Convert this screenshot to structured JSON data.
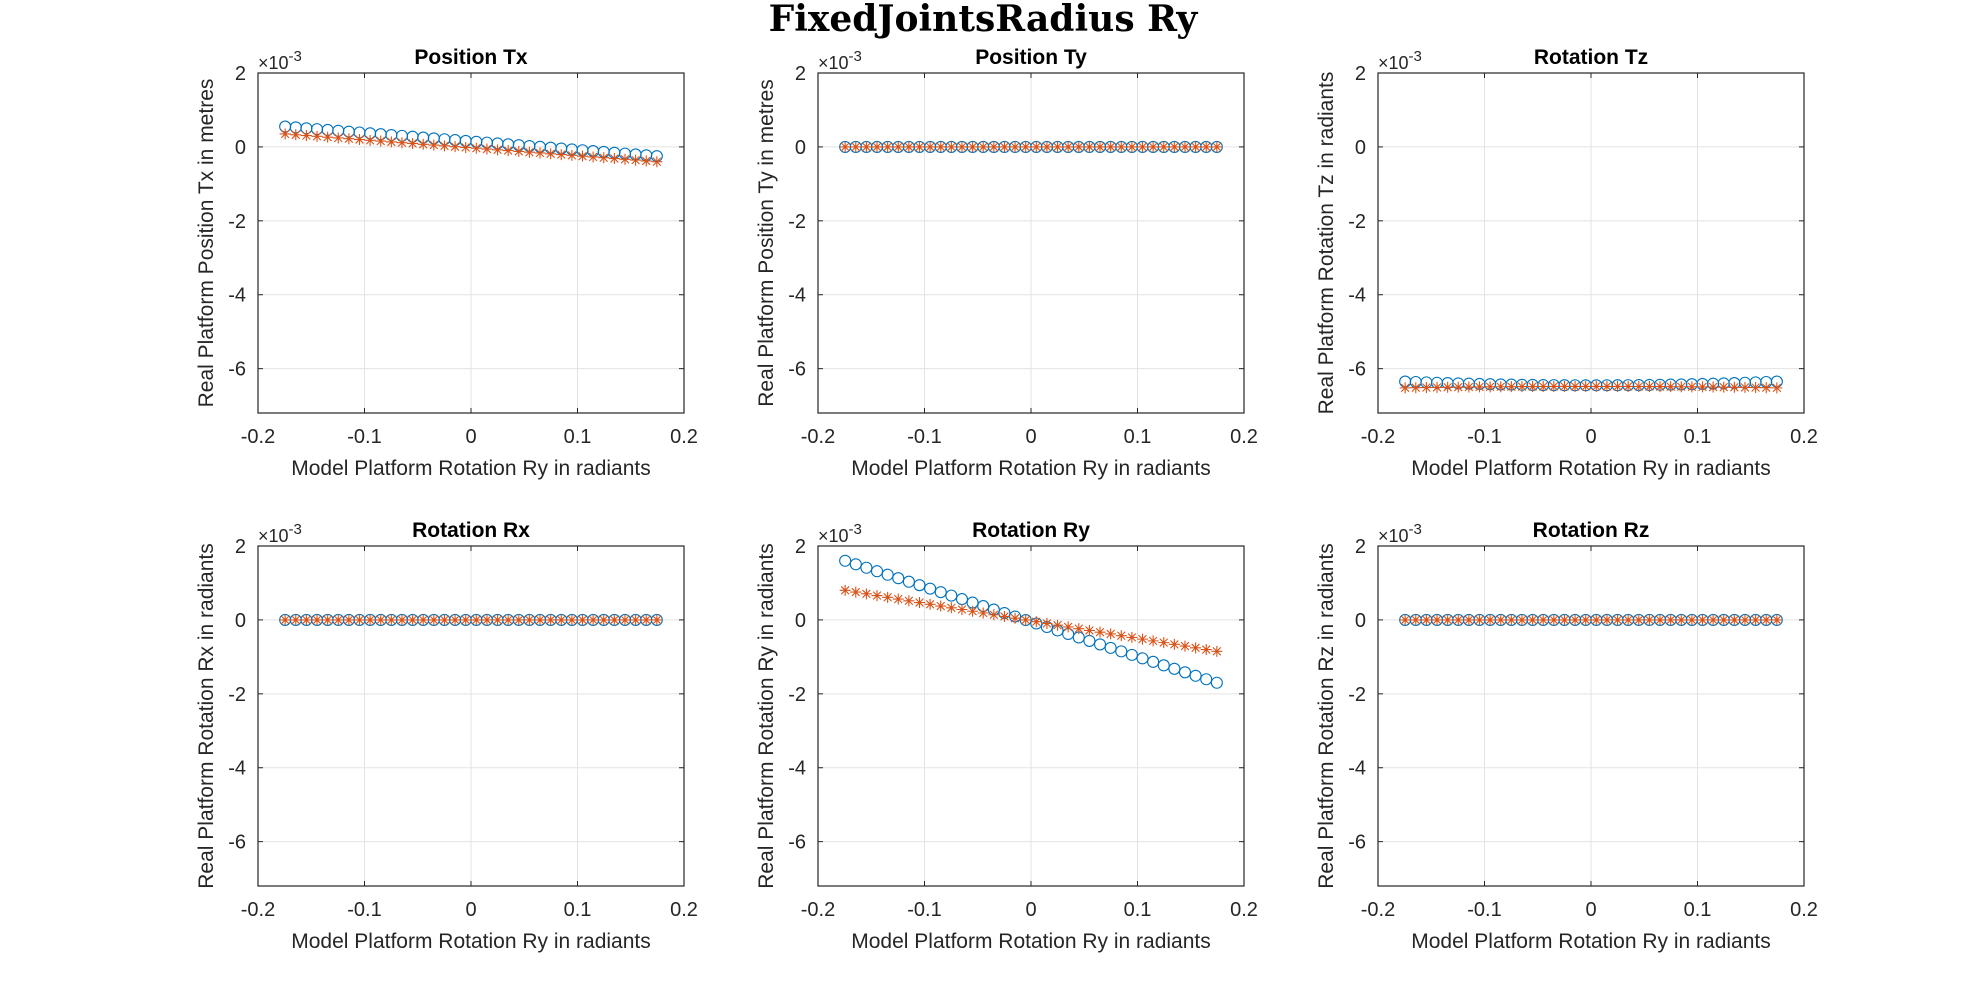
{
  "figure_title": "FixedJointsRadius Ry",
  "colors": {
    "circle_series": "#0072BD",
    "star_series": "#D95319"
  },
  "chart_data": [
    {
      "type": "scatter",
      "title": "Position Tx",
      "xlabel": "Model Platform Rotation Ry in radiants",
      "ylabel": "Real Platform Position Tx in metres",
      "y_exponent_label": "×10",
      "y_exponent_power": "-3",
      "xlim": [
        -0.2,
        0.2
      ],
      "ylim": [
        -7.2,
        2
      ],
      "xticks": [
        -0.2,
        -0.1,
        0,
        0.1,
        0.2
      ],
      "xtick_labels": [
        "-0.2",
        "-0.1",
        "0",
        "0.1",
        "0.2"
      ],
      "yticks": [
        2,
        0,
        -2,
        -4,
        -6
      ],
      "ytick_labels": [
        "2",
        "0",
        "-2",
        "-4",
        "-6"
      ],
      "grid": true,
      "x_range": [
        -0.1745,
        0.1745
      ],
      "n_points": 36,
      "series": [
        {
          "marker": "circle",
          "y_start": 0.55,
          "y_end": -0.25
        },
        {
          "marker": "star",
          "y_start": 0.35,
          "y_end": -0.4
        }
      ]
    },
    {
      "type": "scatter",
      "title": "Position Ty",
      "xlabel": "Model Platform Rotation Ry in radiants",
      "ylabel": "Real Platform Position Ty in metres",
      "y_exponent_label": "×10",
      "y_exponent_power": "-3",
      "xlim": [
        -0.2,
        0.2
      ],
      "ylim": [
        -7.2,
        2
      ],
      "xticks": [
        -0.2,
        -0.1,
        0,
        0.1,
        0.2
      ],
      "xtick_labels": [
        "-0.2",
        "-0.1",
        "0",
        "0.1",
        "0.2"
      ],
      "yticks": [
        2,
        0,
        -2,
        -4,
        -6
      ],
      "ytick_labels": [
        "2",
        "0",
        "-2",
        "-4",
        "-6"
      ],
      "grid": true,
      "x_range": [
        -0.1745,
        0.1745
      ],
      "n_points": 36,
      "series": [
        {
          "marker": "circle",
          "y_start": 0,
          "y_end": 0
        },
        {
          "marker": "star",
          "y_start": 0,
          "y_end": 0
        }
      ]
    },
    {
      "type": "scatter",
      "title": "Rotation Tz",
      "xlabel": "Model Platform Rotation Ry in radiants",
      "ylabel": "Real Platform Rotation Tz in radiants",
      "y_exponent_label": "×10",
      "y_exponent_power": "-3",
      "xlim": [
        -0.2,
        0.2
      ],
      "ylim": [
        -7.2,
        2
      ],
      "xticks": [
        -0.2,
        -0.1,
        0,
        0.1,
        0.2
      ],
      "xtick_labels": [
        "-0.2",
        "-0.1",
        "0",
        "0.1",
        "0.2"
      ],
      "yticks": [
        2,
        0,
        -2,
        -4,
        -6
      ],
      "ytick_labels": [
        "2",
        "0",
        "-2",
        "-4",
        "-6"
      ],
      "grid": true,
      "x_range": [
        -0.1745,
        0.1745
      ],
      "n_points": 36,
      "series": [
        {
          "marker": "circle",
          "y_start": -6.35,
          "y_mid": -6.45,
          "y_end": -6.35
        },
        {
          "marker": "star",
          "y_start": -6.52,
          "y_mid": -6.48,
          "y_end": -6.52
        }
      ]
    },
    {
      "type": "scatter",
      "title": "Rotation Rx",
      "xlabel": "Model Platform Rotation Ry in radiants",
      "ylabel": "Real Platform Rotation Rx in radiants",
      "y_exponent_label": "×10",
      "y_exponent_power": "-3",
      "xlim": [
        -0.2,
        0.2
      ],
      "ylim": [
        -7.2,
        2
      ],
      "xticks": [
        -0.2,
        -0.1,
        0,
        0.1,
        0.2
      ],
      "xtick_labels": [
        "-0.2",
        "-0.1",
        "0",
        "0.1",
        "0.2"
      ],
      "yticks": [
        2,
        0,
        -2,
        -4,
        -6
      ],
      "ytick_labels": [
        "2",
        "0",
        "-2",
        "-4",
        "-6"
      ],
      "grid": true,
      "x_range": [
        -0.1745,
        0.1745
      ],
      "n_points": 36,
      "series": [
        {
          "marker": "circle",
          "y_start": 0,
          "y_end": 0
        },
        {
          "marker": "star",
          "y_start": 0,
          "y_end": 0
        }
      ]
    },
    {
      "type": "scatter",
      "title": "Rotation Ry",
      "xlabel": "Model Platform Rotation Ry in radiants",
      "ylabel": "Real Platform Rotation Ry in radiants",
      "y_exponent_label": "×10",
      "y_exponent_power": "-3",
      "xlim": [
        -0.2,
        0.2
      ],
      "ylim": [
        -7.2,
        2
      ],
      "xticks": [
        -0.2,
        -0.1,
        0,
        0.1,
        0.2
      ],
      "xtick_labels": [
        "-0.2",
        "-0.1",
        "0",
        "0.1",
        "0.2"
      ],
      "yticks": [
        2,
        0,
        -2,
        -4,
        -6
      ],
      "ytick_labels": [
        "2",
        "0",
        "-2",
        "-4",
        "-6"
      ],
      "grid": true,
      "x_range": [
        -0.1745,
        0.1745
      ],
      "n_points": 36,
      "series": [
        {
          "marker": "circle",
          "y_start": 1.6,
          "y_end": -1.7
        },
        {
          "marker": "star",
          "y_start": 0.8,
          "y_end": -0.85
        }
      ]
    },
    {
      "type": "scatter",
      "title": "Rotation Rz",
      "xlabel": "Model Platform Rotation Ry in radiants",
      "ylabel": "Real Platform Rotation Rz in radiants",
      "y_exponent_label": "×10",
      "y_exponent_power": "-3",
      "xlim": [
        -0.2,
        0.2
      ],
      "ylim": [
        -7.2,
        2
      ],
      "xticks": [
        -0.2,
        -0.1,
        0,
        0.1,
        0.2
      ],
      "xtick_labels": [
        "-0.2",
        "-0.1",
        "0",
        "0.1",
        "0.2"
      ],
      "yticks": [
        2,
        0,
        -2,
        -4,
        -6
      ],
      "ytick_labels": [
        "2",
        "0",
        "-2",
        "-4",
        "-6"
      ],
      "grid": true,
      "x_range": [
        -0.1745,
        0.1745
      ],
      "n_points": 36,
      "series": [
        {
          "marker": "circle",
          "y_start": 0,
          "y_end": 0
        },
        {
          "marker": "star",
          "y_start": 0,
          "y_end": 0
        }
      ]
    }
  ]
}
